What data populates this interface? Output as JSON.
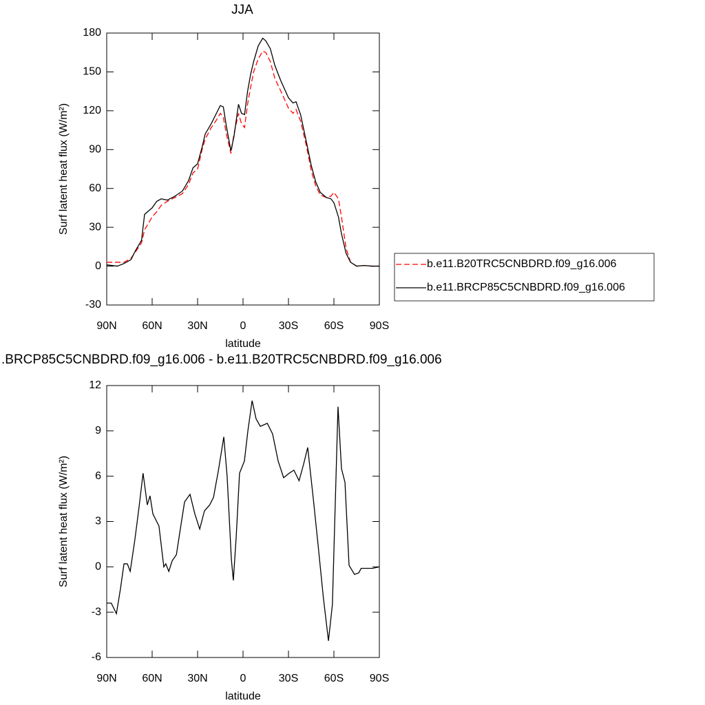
{
  "chart_data": [
    {
      "type": "line",
      "title": "JJA",
      "xlabel": "latitude",
      "ylabel": "Surf latent heat flux (W/m²)",
      "xlim": [
        90,
        -90
      ],
      "xticks": [
        {
          "value": 90,
          "label": "90N"
        },
        {
          "value": 60,
          "label": "60N"
        },
        {
          "value": 30,
          "label": "30N"
        },
        0,
        {
          "value": -30,
          "label": "30S"
        },
        {
          "value": -60,
          "label": "60S"
        },
        {
          "value": -90,
          "label": "90S"
        }
      ],
      "ylim": [
        -30,
        180
      ],
      "yticks": [
        -30,
        0,
        30,
        60,
        90,
        120,
        150,
        180
      ],
      "legend": "right",
      "x": [
        90,
        83,
        78.6,
        74,
        71,
        67,
        65,
        60,
        57,
        54,
        50,
        45,
        40,
        36,
        33,
        30,
        27,
        25,
        21,
        18,
        15,
        13,
        11,
        8,
        6,
        3,
        1,
        -1,
        -3,
        -5,
        -7,
        -10,
        -13,
        -15,
        -18,
        -21,
        -25,
        -30,
        -33,
        -35,
        -38,
        -42,
        -45,
        -48,
        -51,
        -55,
        -58,
        -60,
        -63,
        -65,
        -68,
        -71,
        -75,
        -80,
        -85,
        -90
      ],
      "series": [
        {
          "name": "b.e11.B20TRC5CNBDRD.f09_g16.006",
          "color": "#ff0000",
          "linestyle": "dashed",
          "values": [
            3,
            3,
            3,
            6,
            11,
            18,
            28,
            38,
            42,
            47,
            50,
            53,
            56,
            63,
            72,
            75,
            90,
            98,
            107,
            112,
            118,
            115,
            102,
            87,
            102,
            118,
            110,
            107,
            125,
            138,
            150,
            160,
            166,
            165,
            158,
            145,
            135,
            122,
            118,
            121,
            112,
            92,
            74,
            62,
            55,
            53,
            54,
            57,
            52,
            38,
            14,
            3,
            0,
            0.5,
            0,
            0
          ]
        },
        {
          "name": "b.e11.BRCP85C5CNBDRD.f09_g16.006",
          "color": "#000000",
          "linestyle": "solid",
          "values": [
            1,
            0,
            2,
            5,
            12,
            20,
            40,
            45,
            50,
            52,
            51,
            54,
            58,
            66,
            76,
            79,
            92,
            102,
            110,
            117,
            124,
            123,
            108,
            89,
            100,
            125,
            118,
            117,
            135,
            148,
            158,
            170,
            176,
            174,
            168,
            155,
            143,
            130,
            126,
            127,
            117,
            95,
            78,
            65,
            57,
            53,
            52,
            49,
            38,
            25,
            10,
            3,
            0,
            0.5,
            0,
            0
          ]
        }
      ]
    },
    {
      "type": "line",
      "title": ".BRCP85C5CNBDRD.f09_g16.006 - b.e11.B20TRC5CNBDRD.f09_g16.006",
      "xlabel": "latitude",
      "ylabel": "Surf latent heat flux (W/m²)",
      "xlim": [
        90,
        -90
      ],
      "xticks": [
        {
          "value": 90,
          "label": "90N"
        },
        {
          "value": 60,
          "label": "60N"
        },
        {
          "value": 30,
          "label": "30N"
        },
        0,
        {
          "value": -30,
          "label": "30S"
        },
        {
          "value": -60,
          "label": "60S"
        },
        {
          "value": -90,
          "label": "90S"
        }
      ],
      "ylim": [
        -6,
        12
      ],
      "yticks": [
        -6,
        -3,
        0,
        3,
        6,
        9,
        12
      ],
      "x": [
        90,
        87,
        83.6,
        81,
        78.6,
        76.4,
        74.5,
        71.4,
        68.6,
        66,
        63.2,
        61.4,
        59.5,
        55.5,
        52.3,
        51,
        49,
        46.8,
        44,
        41.4,
        38.6,
        35,
        31.8,
        28.6,
        25.5,
        22,
        19.5,
        16.4,
        12.7,
        10.5,
        7.7,
        6.4,
        4.5,
        2.3,
        -0.9,
        -3.2,
        -6,
        -8.6,
        -11.4,
        -16,
        -19.5,
        -23.2,
        -26.8,
        -30.5,
        -33.6,
        -37,
        -40,
        -42.7,
        -46.4,
        -49.5,
        -53,
        -56.4,
        -59,
        -62.7,
        -65,
        -67.3,
        -70,
        -73.6,
        -76.4,
        -78,
        -82.7,
        -85.5,
        -90
      ],
      "series": [
        {
          "color": "#000000",
          "linestyle": "solid",
          "values": [
            -2.4,
            -2.4,
            -3.1,
            -1.5,
            0.2,
            0.2,
            -0.3,
            1.8,
            4,
            6.2,
            4.1,
            4.7,
            3.5,
            2.7,
            0,
            0.2,
            -0.3,
            0.4,
            0.8,
            2.5,
            4.3,
            4.8,
            3.5,
            2.5,
            3.7,
            4.1,
            4.6,
            6.3,
            8.6,
            6,
            0.5,
            -0.9,
            2,
            6.2,
            7,
            9,
            11,
            9.8,
            9.3,
            9.5,
            8.8,
            7,
            5.9,
            6.2,
            6.4,
            5.7,
            6.8,
            7.9,
            4.5,
            1.5,
            -2,
            -4.9,
            -2.5,
            10.6,
            6.5,
            5.6,
            0.1,
            -0.5,
            -0.4,
            -0.1,
            -0.1,
            -0.1,
            0
          ]
        }
      ]
    }
  ]
}
